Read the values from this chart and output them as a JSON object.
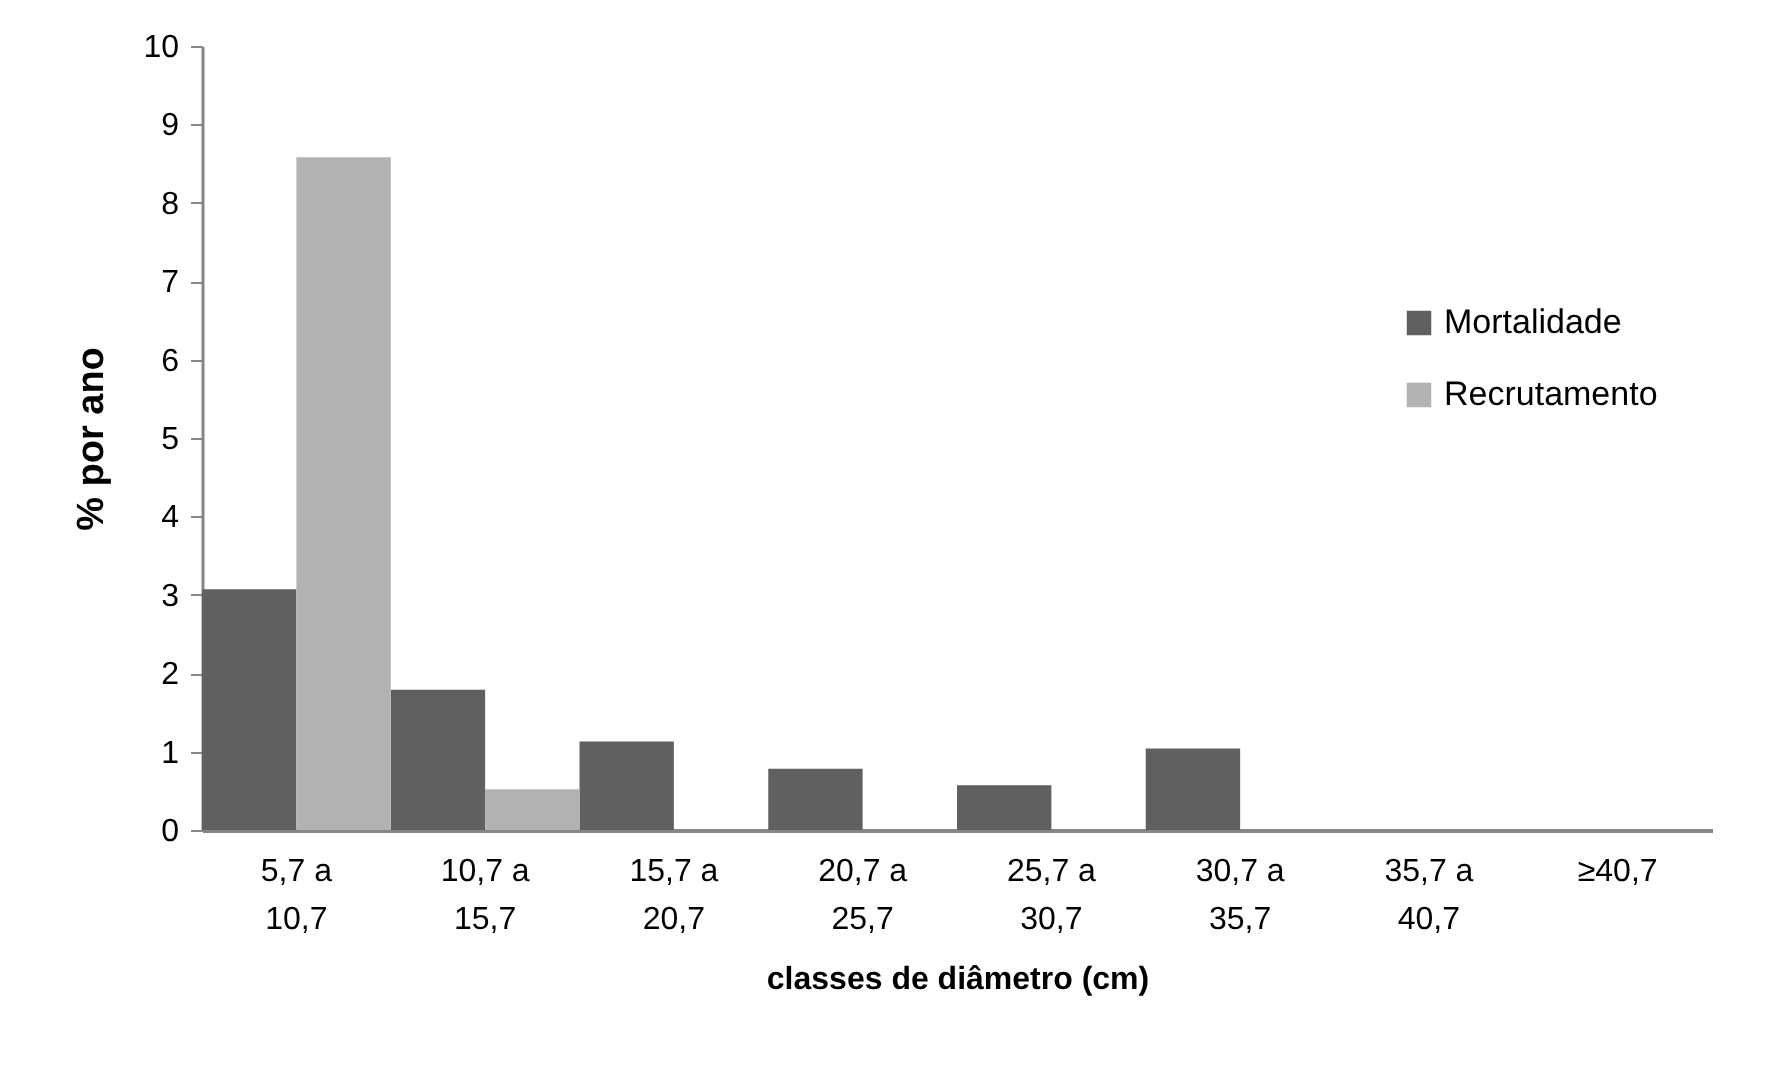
{
  "chart_data": {
    "type": "bar",
    "xlabel": "classes de diâmetro (cm)",
    "ylabel": "% por ano",
    "categories": [
      "5,7 a 10,7",
      "10,7 a 15,7",
      "15,7 a 20,7",
      "20,7 a 25,7",
      "25,7 a 30,7",
      "30,7 a 35,7",
      "35,7 a 40,7",
      "≥40,7"
    ],
    "series": [
      {
        "name": "Mortalidade",
        "color": "#606060",
        "values": [
          3.07,
          1.79,
          1.13,
          0.78,
          0.57,
          1.04,
          0,
          0
        ]
      },
      {
        "name": "Recrutamento",
        "color": "#b2b2b2",
        "values": [
          8.58,
          0.52,
          0,
          0,
          0,
          0,
          0,
          0
        ]
      }
    ],
    "ylim": [
      0,
      10
    ],
    "yticks": [
      0,
      1,
      2,
      3,
      4,
      5,
      6,
      7,
      8,
      9,
      10
    ],
    "grid": false,
    "legend": "right"
  }
}
